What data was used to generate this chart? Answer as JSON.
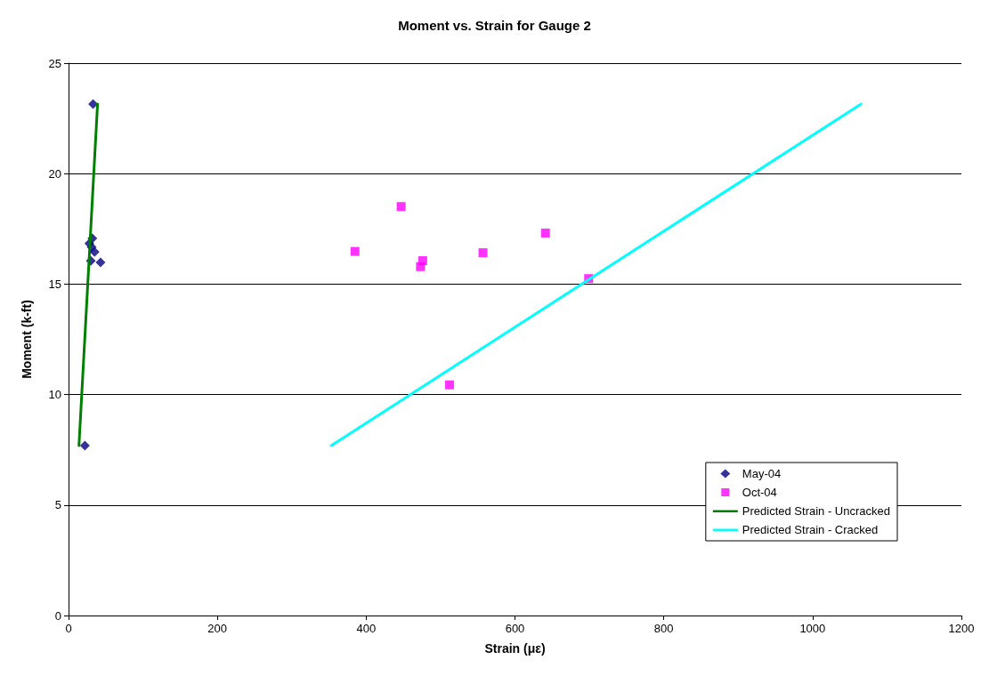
{
  "chart_data": {
    "type": "scatter",
    "title": "Moment vs. Strain for Gauge 2",
    "xlabel": "Strain (με)",
    "ylabel": "Moment (k-ft)",
    "xlim": [
      0,
      1200
    ],
    "xticks": [
      0,
      200,
      400,
      600,
      800,
      1000,
      1200
    ],
    "ylim": [
      0,
      25
    ],
    "yticks": [
      0,
      5,
      10,
      15,
      20,
      25
    ],
    "grid": "y",
    "legend": "right",
    "series": [
      {
        "name": "May-04",
        "marker": "diamond",
        "color": "#000080",
        "x": [
          33,
          32,
          28,
          31,
          35,
          30,
          43,
          22
        ],
        "values": [
          23.15,
          17.07,
          16.84,
          16.68,
          16.46,
          16.05,
          15.98,
          7.69
        ]
      },
      {
        "name": "Oct-04",
        "marker": "square",
        "color": "#ff00ff",
        "x": [
          385,
          447,
          476,
          473,
          557,
          641,
          699,
          512
        ],
        "values": [
          16.48,
          18.51,
          16.06,
          15.79,
          16.42,
          17.31,
          15.25,
          10.44
        ]
      },
      {
        "name": "Predicted Strain - Uncracked",
        "type": "line",
        "marker": "none",
        "color": "#008000",
        "x": [
          14,
          39
        ],
        "values": [
          7.69,
          23.15
        ]
      },
      {
        "name": "Predicted Strain - Cracked",
        "type": "line",
        "marker": "none",
        "color": "#00ffff",
        "x": [
          353,
          1065
        ],
        "values": [
          7.69,
          23.15
        ]
      }
    ]
  }
}
